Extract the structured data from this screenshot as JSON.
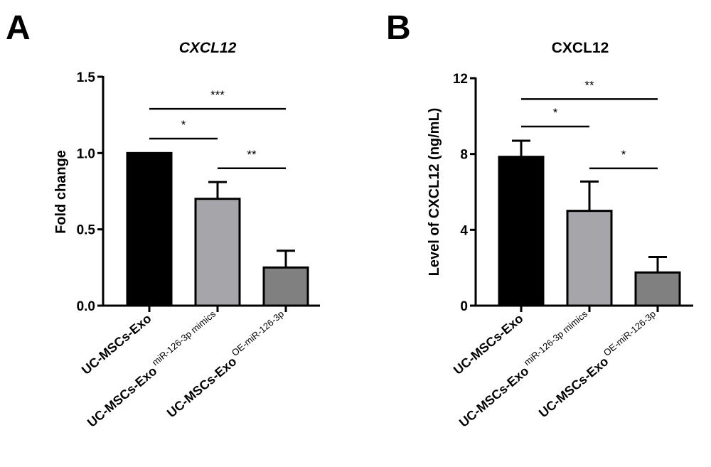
{
  "chart_data": [
    {
      "panel_label": "A",
      "type": "bar",
      "title": "CXCL12",
      "title_italic": true,
      "xlabel": "",
      "ylabel": "Fold change",
      "ylim": [
        0,
        1.5
      ],
      "yticks": [
        "0.0",
        "0.5",
        "1.0",
        "1.5"
      ],
      "ytick_values": [
        0,
        0.5,
        1.0,
        1.5
      ],
      "categories": [
        {
          "main": "UC-MSCs-Exo",
          "sup": ""
        },
        {
          "main": "UC-MSCs-Exo",
          "sup": "miR-126-3p mimics"
        },
        {
          "main": "UC-MSCs-Exo",
          "sup": "OE-miR-126-3p"
        }
      ],
      "values": [
        1.0,
        0.7,
        0.25
      ],
      "errors": [
        0.0,
        0.11,
        0.11
      ],
      "colors": [
        "#000000",
        "#a6a6aa",
        "#808080"
      ],
      "significance": [
        {
          "from": 0,
          "to": 2,
          "y": 1.29,
          "label": "***"
        },
        {
          "from": 0,
          "to": 1,
          "y": 1.095,
          "label": "*"
        },
        {
          "from": 1,
          "to": 2,
          "y": 0.9,
          "label": "**"
        }
      ]
    },
    {
      "panel_label": "B",
      "type": "bar",
      "title": "CXCL12",
      "title_italic": false,
      "xlabel": "",
      "ylabel": "Level of CXCL12 (ng/mL)",
      "ylim": [
        0,
        12
      ],
      "yticks": [
        "0",
        "4",
        "8",
        "12"
      ],
      "ytick_values": [
        0,
        4,
        8,
        12
      ],
      "categories": [
        {
          "main": "UC-MSCs-Exo",
          "sup": ""
        },
        {
          "main": "UC-MSCs-Exo",
          "sup": "miR-126-3p mimics"
        },
        {
          "main": "UC-MSCs-Exo",
          "sup": "OE-miR-126-3p"
        }
      ],
      "values": [
        7.85,
        5.0,
        1.75
      ],
      "errors": [
        0.85,
        1.55,
        0.82
      ],
      "colors": [
        "#000000",
        "#a6a6aa",
        "#808080"
      ],
      "significance": [
        {
          "from": 0,
          "to": 2,
          "y": 10.9,
          "label": "**"
        },
        {
          "from": 0,
          "to": 1,
          "y": 9.45,
          "label": "*"
        },
        {
          "from": 1,
          "to": 2,
          "y": 7.24,
          "label": "*"
        }
      ]
    }
  ]
}
